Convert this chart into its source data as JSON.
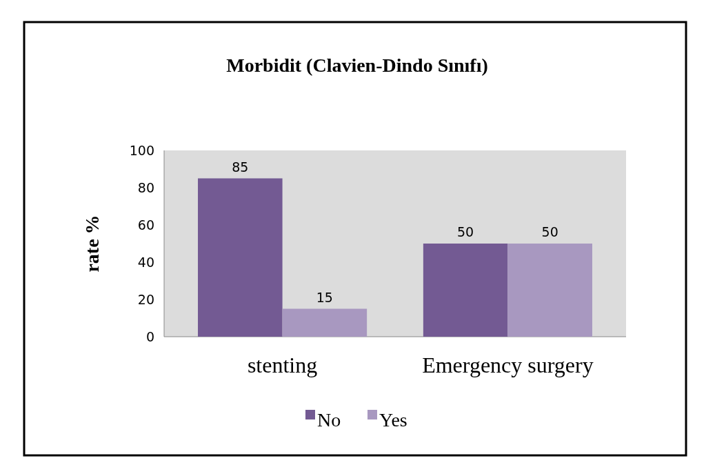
{
  "chart_data": {
    "type": "bar",
    "title": "Morbidit (Clavien-Dindo Sınıfı)",
    "ylabel": "rate %",
    "categories": [
      "stenting",
      "Emergency surgery"
    ],
    "series": [
      {
        "name": "No",
        "color": "#735a93",
        "values": [
          85,
          50
        ]
      },
      {
        "name": "Yes",
        "color": "#a898c0",
        "values": [
          15,
          50
        ]
      }
    ],
    "ylim": [
      0,
      100
    ],
    "yticks": [
      0,
      20,
      40,
      60,
      80,
      100
    ],
    "data_labels": true,
    "legend": "bottom",
    "grid": false
  }
}
